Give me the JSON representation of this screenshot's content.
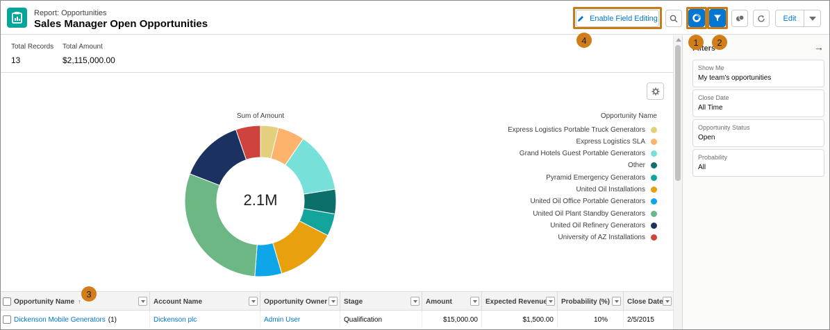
{
  "header": {
    "subtitle": "Report: Opportunities",
    "title": "Sales Manager Open Opportunities",
    "enable_field_editing": "Enable Field Editing",
    "edit": "Edit"
  },
  "markers": [
    "1",
    "2",
    "3",
    "4"
  ],
  "summary": {
    "total_records_label": "Total Records",
    "total_records_value": "13",
    "total_amount_label": "Total Amount",
    "total_amount_value": "$2,115,000.00"
  },
  "chart": {
    "title": "Sum of Amount",
    "center_label": "2.1M",
    "legend_title": "Opportunity Name"
  },
  "chart_data": {
    "type": "pie",
    "variant": "donut",
    "title": "Sum of Amount",
    "legend_title": "Opportunity Name",
    "legend_position": "right",
    "total_label": "2.1M",
    "categories": [
      "Express Logistics Portable Truck Generators",
      "Express Logistics SLA",
      "Grand Hotels Guest Portable Generators",
      "Other",
      "Pyramid Emergency Generators",
      "United Oil Installations",
      "United Oil Office Portable Generators",
      "United Oil Plant Standby Generators",
      "United Oil Refinery Generators",
      "University of AZ Installations"
    ],
    "values": [
      80000,
      120000,
      270000,
      110000,
      100000,
      270000,
      120000,
      620000,
      290000,
      110000
    ],
    "colors": [
      "#e3cf7c",
      "#fdb36b",
      "#76e0d9",
      "#0b6f6a",
      "#13a59c",
      "#e8a00d",
      "#0ea5e9",
      "#6db784",
      "#1b3160",
      "#cf433e"
    ]
  },
  "table": {
    "columns": [
      "Opportunity Name",
      "Account Name",
      "Opportunity Owner",
      "Stage",
      "Amount",
      "Expected Revenue",
      "Probability (%)",
      "Close Date"
    ],
    "sort_indicator": "↑",
    "rows": [
      {
        "opportunity_name": "Dickenson Mobile Generators",
        "count": "(1)",
        "account_name": "Dickenson plc",
        "owner": "Admin User",
        "stage": "Qualification",
        "amount": "$15,000.00",
        "expected_revenue": "$1,500.00",
        "probability": "10%",
        "close_date": "2/5/2015"
      }
    ]
  },
  "filters": {
    "title": "Filters",
    "items": [
      {
        "label": "Show Me",
        "value": "My team's opportunities"
      },
      {
        "label": "Close Date",
        "value": "All Time"
      },
      {
        "label": "Opportunity Status",
        "value": "Open"
      },
      {
        "label": "Probability",
        "value": "All"
      }
    ]
  }
}
